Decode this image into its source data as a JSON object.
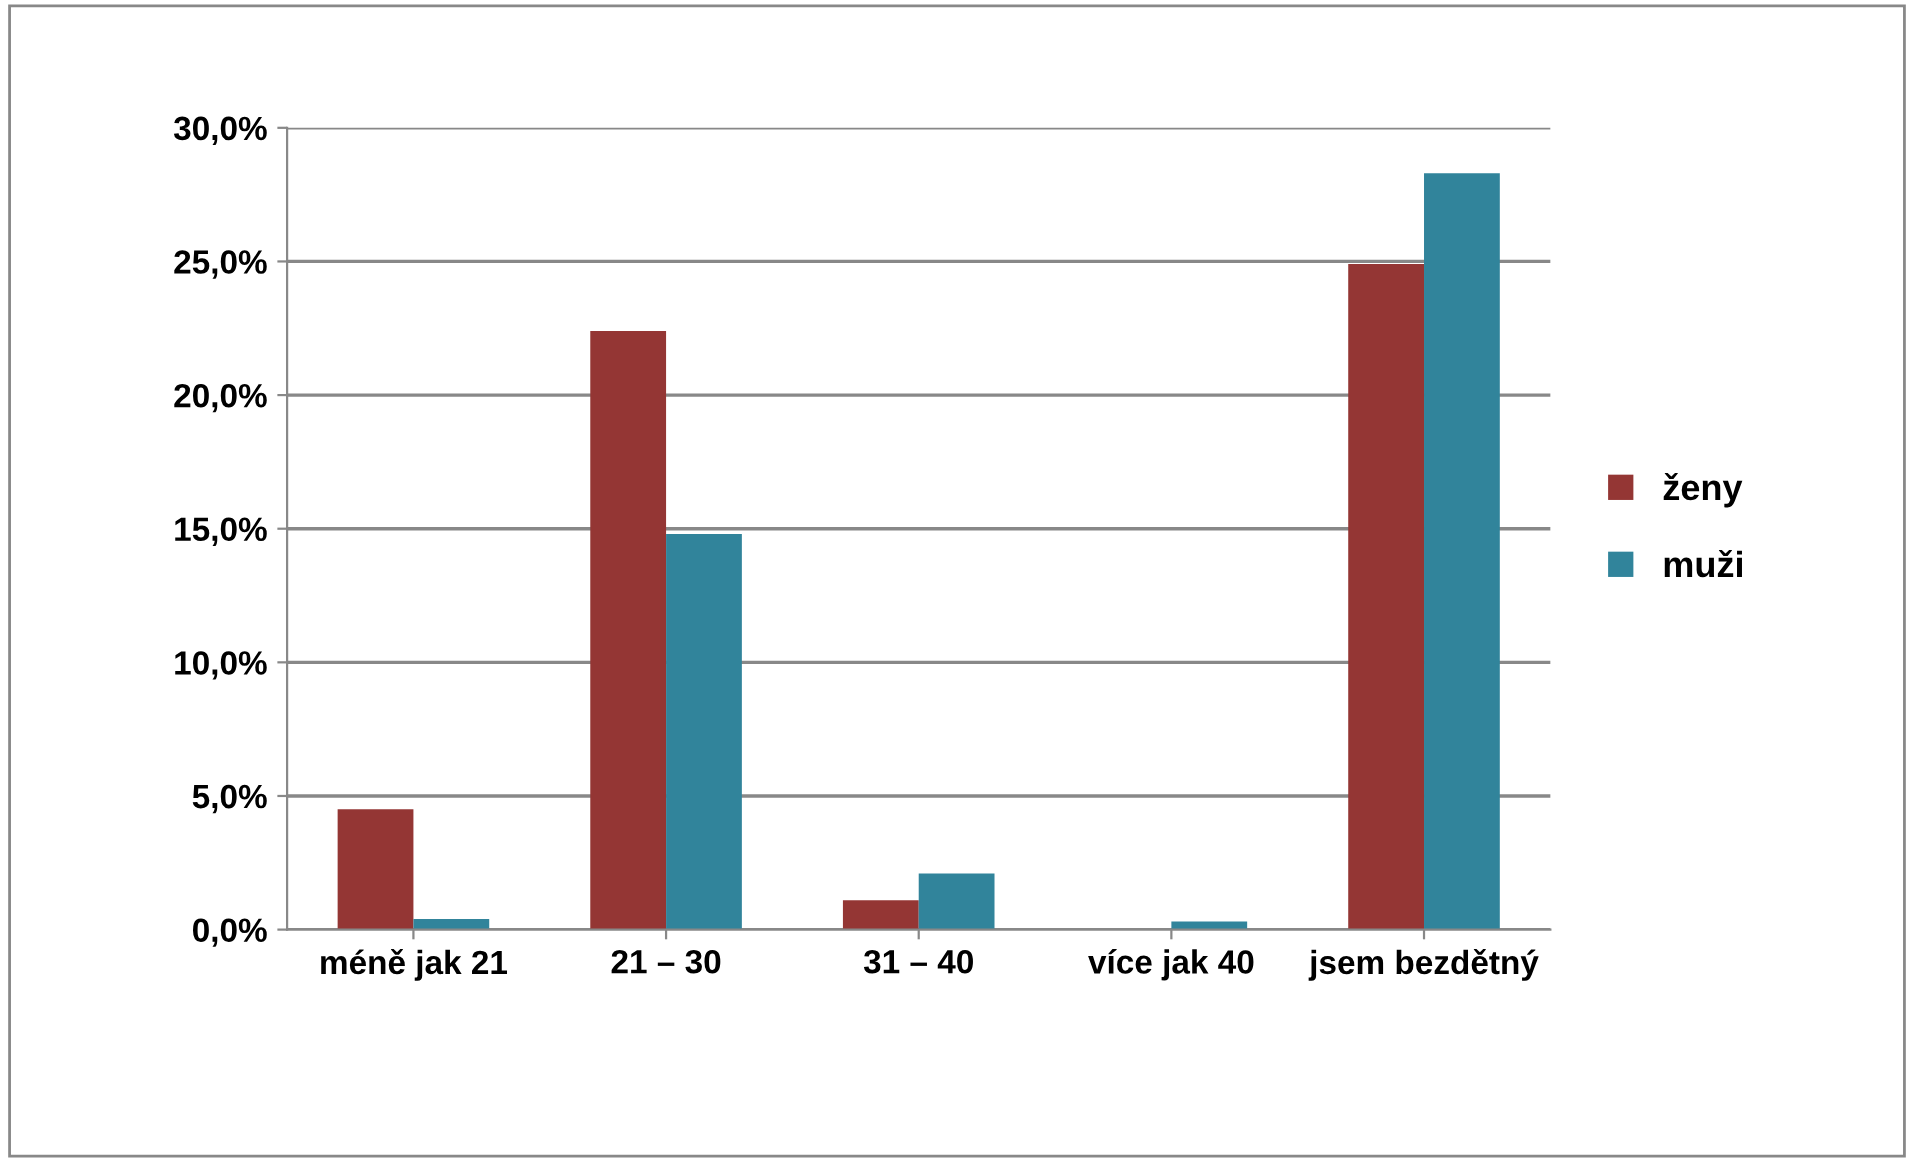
{
  "chart_data": {
    "type": "bar",
    "categories": [
      "méně jak 21",
      "21 – 30",
      "31 – 40",
      "více jak 40",
      "jsem bezdětný"
    ],
    "series": [
      {
        "name": "ženy",
        "color": "#943634",
        "values": [
          4.5,
          22.4,
          1.1,
          0.0,
          24.9
        ]
      },
      {
        "name": "muži",
        "color": "#31849b",
        "values": [
          0.4,
          14.8,
          2.1,
          0.3,
          28.3
        ]
      }
    ],
    "ylim": [
      0,
      30
    ],
    "yticks": [
      {
        "value": 0,
        "label": "0,0%"
      },
      {
        "value": 5,
        "label": "5,0%"
      },
      {
        "value": 10,
        "label": "10,0%"
      },
      {
        "value": 15,
        "label": "15,0%"
      },
      {
        "value": 20,
        "label": "20,0%"
      },
      {
        "value": 25,
        "label": "25,0%"
      },
      {
        "value": 30,
        "label": "30,0%"
      }
    ],
    "grid": "y",
    "legend": "right"
  }
}
